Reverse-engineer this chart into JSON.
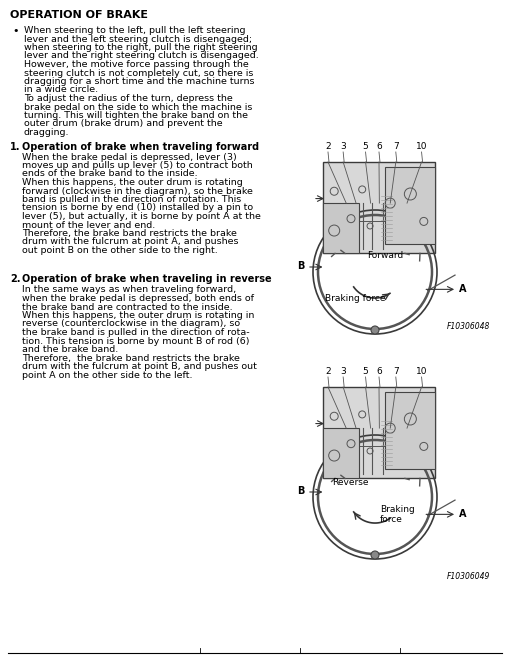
{
  "title": "OPERATION OF BRAKE",
  "bg_color": "#ffffff",
  "bullet_lines": [
    "When steering to the left, pull the left steering",
    "lever and the left steering clutch is disengaged;",
    "when steering to the right, pull the right steering",
    "lever and the right steering clutch is disengaged.",
    "However, the motive force passing through the",
    "steering clutch is not completely cut, so there is",
    "dragging for a short time and the machine turns",
    "in a wide circle.",
    "To adjust the radius of the turn, depress the",
    "brake pedal on the side to which the machine is",
    "turning. This will tighten the brake band on the",
    "outer drum (brake drum) and prevent the",
    "dragging."
  ],
  "sec1_title": "Operation of brake when traveling forward",
  "sec1_lines": [
    "When the brake pedal is depressed, lever (3)",
    "moves up and pulls up lever (5) to contract both",
    "ends of the brake band to the inside.",
    "When this happens, the outer drum is rotating",
    "forward (clockwise in the diagram), so the brake",
    "band is pulled in the direction of rotation. This",
    "tension is borne by end (10) installed by a pin to",
    "lever (5), but actually, it is borne by point A at the",
    "mount of the lever and end.",
    "Therefore, the brake band restricts the brake",
    "drum with the fulcrum at point A, and pushes",
    "out point B on the other side to the right."
  ],
  "sec2_title": "Operation of brake when traveling in reverse",
  "sec2_lines": [
    "In the same ways as when traveling forward,",
    "when the brake pedal is depressed, both ends of",
    "the brake band are contracted to the inside.",
    "When this happens, the outer drum is rotating in",
    "reverse (counterclockwise in the diagram), so",
    "the brake band is pulled in the direction of rota-",
    "tion. This tension is borne by mount B of rod (6)",
    "and the brake band.",
    "Therefore,  the brake band restricts the brake",
    "drum with the fulcrum at point B, and pushes out",
    "point A on the other side to the left."
  ],
  "fig1_label": "F10306048",
  "fig2_label": "F10306049",
  "diagram_numbers": [
    "2",
    "3",
    "5",
    "6",
    "7",
    "10"
  ],
  "lh": 8.5,
  "fs_body": 6.8,
  "fs_title": 8.0,
  "fs_sec": 7.0,
  "fs_diag": 6.5
}
